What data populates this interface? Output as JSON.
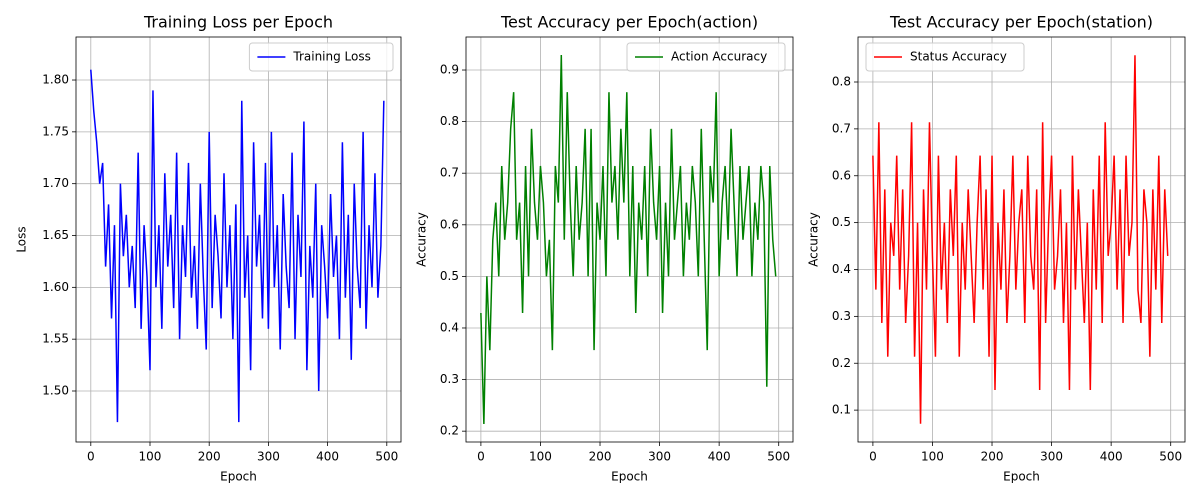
{
  "chart_data": [
    {
      "type": "line",
      "title": "Training Loss per Epoch",
      "x_label": "Epoch",
      "y_label": "Loss",
      "grid": true,
      "legend": "upper right",
      "xlim": [
        -25,
        524
      ],
      "xticks": [
        0,
        100,
        200,
        300,
        400,
        500
      ],
      "ylim": [
        1.4508,
        1.8415
      ],
      "yticks": [
        {
          "value": 1.5,
          "label": "1.50"
        },
        1.55,
        {
          "value": 1.6,
          "label": "1.60"
        },
        1.65,
        {
          "value": 1.7,
          "label": "1.70"
        },
        1.75,
        {
          "value": 1.8,
          "label": "1.80"
        }
      ],
      "x": [
        0,
        5,
        10,
        15,
        20,
        25,
        30,
        35,
        40,
        45,
        50,
        55,
        60,
        65,
        70,
        75,
        80,
        85,
        90,
        95,
        100,
        105,
        110,
        115,
        120,
        125,
        130,
        135,
        140,
        145,
        150,
        155,
        160,
        165,
        170,
        175,
        180,
        185,
        190,
        195,
        200,
        205,
        210,
        215,
        220,
        225,
        230,
        235,
        240,
        245,
        250,
        255,
        260,
        265,
        270,
        275,
        280,
        285,
        290,
        295,
        300,
        305,
        310,
        315,
        320,
        325,
        330,
        335,
        340,
        345,
        350,
        355,
        360,
        365,
        370,
        375,
        380,
        385,
        390,
        395,
        400,
        405,
        410,
        415,
        420,
        425,
        430,
        435,
        440,
        445,
        450,
        455,
        460,
        465,
        470,
        475,
        480,
        485,
        490,
        495
      ],
      "series": [
        {
          "name": "Training Loss",
          "color": "#0000ff",
          "values": [
            1.81,
            1.77,
            1.74,
            1.7,
            1.72,
            1.62,
            1.68,
            1.57,
            1.66,
            1.47,
            1.7,
            1.63,
            1.67,
            1.6,
            1.64,
            1.58,
            1.73,
            1.56,
            1.66,
            1.61,
            1.52,
            1.79,
            1.6,
            1.66,
            1.56,
            1.71,
            1.62,
            1.67,
            1.58,
            1.73,
            1.55,
            1.66,
            1.61,
            1.72,
            1.59,
            1.64,
            1.56,
            1.7,
            1.61,
            1.54,
            1.75,
            1.58,
            1.67,
            1.63,
            1.57,
            1.71,
            1.6,
            1.66,
            1.55,
            1.68,
            1.47,
            1.78,
            1.59,
            1.65,
            1.52,
            1.74,
            1.62,
            1.67,
            1.57,
            1.72,
            1.56,
            1.75,
            1.6,
            1.66,
            1.54,
            1.69,
            1.62,
            1.58,
            1.73,
            1.55,
            1.67,
            1.61,
            1.76,
            1.52,
            1.64,
            1.59,
            1.7,
            1.5,
            1.66,
            1.62,
            1.57,
            1.69,
            1.61,
            1.65,
            1.55,
            1.74,
            1.59,
            1.67,
            1.53,
            1.7,
            1.62,
            1.58,
            1.75,
            1.56,
            1.66,
            1.6,
            1.71,
            1.59,
            1.64,
            1.78
          ]
        }
      ]
    },
    {
      "type": "line",
      "title": "Test Accuracy per Epoch(action)",
      "x_label": "Epoch",
      "y_label": "Accuracy",
      "grid": true,
      "legend": "upper right",
      "xlim": [
        -25,
        524
      ],
      "xticks": [
        0,
        100,
        200,
        300,
        400,
        500
      ],
      "ylim": [
        0.179,
        0.964
      ],
      "yticks": [
        0.2,
        0.3,
        0.4,
        0.5,
        0.6,
        0.7,
        0.8,
        0.9
      ],
      "x": [
        0,
        5,
        10,
        15,
        20,
        25,
        30,
        35,
        40,
        45,
        50,
        55,
        60,
        65,
        70,
        75,
        80,
        85,
        90,
        95,
        100,
        105,
        110,
        115,
        120,
        125,
        130,
        135,
        140,
        145,
        150,
        155,
        160,
        165,
        170,
        175,
        180,
        185,
        190,
        195,
        200,
        205,
        210,
        215,
        220,
        225,
        230,
        235,
        240,
        245,
        250,
        255,
        260,
        265,
        270,
        275,
        280,
        285,
        290,
        295,
        300,
        305,
        310,
        315,
        320,
        325,
        330,
        335,
        340,
        345,
        350,
        355,
        360,
        365,
        370,
        375,
        380,
        385,
        390,
        395,
        400,
        405,
        410,
        415,
        420,
        425,
        430,
        435,
        440,
        445,
        450,
        455,
        460,
        465,
        470,
        475,
        480,
        485,
        490,
        495
      ],
      "series": [
        {
          "name": "Action Accuracy",
          "color": "#008000",
          "values": [
            0.429,
            0.214,
            0.5,
            0.357,
            0.571,
            0.643,
            0.5,
            0.714,
            0.571,
            0.643,
            0.786,
            0.857,
            0.571,
            0.643,
            0.429,
            0.714,
            0.5,
            0.786,
            0.643,
            0.571,
            0.714,
            0.643,
            0.5,
            0.571,
            0.357,
            0.714,
            0.643,
            0.929,
            0.571,
            0.857,
            0.643,
            0.5,
            0.714,
            0.571,
            0.643,
            0.786,
            0.5,
            0.786,
            0.357,
            0.643,
            0.571,
            0.714,
            0.5,
            0.857,
            0.643,
            0.714,
            0.571,
            0.786,
            0.643,
            0.857,
            0.5,
            0.714,
            0.429,
            0.643,
            0.571,
            0.714,
            0.5,
            0.786,
            0.643,
            0.571,
            0.714,
            0.429,
            0.643,
            0.5,
            0.786,
            0.571,
            0.643,
            0.714,
            0.5,
            0.643,
            0.571,
            0.714,
            0.643,
            0.5,
            0.786,
            0.571,
            0.357,
            0.714,
            0.643,
            0.857,
            0.5,
            0.643,
            0.714,
            0.571,
            0.786,
            0.643,
            0.5,
            0.714,
            0.571,
            0.643,
            0.714,
            0.5,
            0.643,
            0.571,
            0.714,
            0.643,
            0.286,
            0.714,
            0.571,
            0.5
          ]
        }
      ]
    },
    {
      "type": "line",
      "title": "Test Accuracy per Epoch(station)",
      "x_label": "Epoch",
      "y_label": "Accuracy",
      "grid": true,
      "legend": "upper left",
      "xlim": [
        -25,
        524
      ],
      "xticks": [
        0,
        100,
        200,
        300,
        400,
        500
      ],
      "ylim": [
        0.032,
        0.896
      ],
      "yticks": [
        0.1,
        0.2,
        0.3,
        0.4,
        0.5,
        0.6,
        0.7,
        0.8
      ],
      "x": [
        0,
        5,
        10,
        15,
        20,
        25,
        30,
        35,
        40,
        45,
        50,
        55,
        60,
        65,
        70,
        75,
        80,
        85,
        90,
        95,
        100,
        105,
        110,
        115,
        120,
        125,
        130,
        135,
        140,
        145,
        150,
        155,
        160,
        165,
        170,
        175,
        180,
        185,
        190,
        195,
        200,
        205,
        210,
        215,
        220,
        225,
        230,
        235,
        240,
        245,
        250,
        255,
        260,
        265,
        270,
        275,
        280,
        285,
        290,
        295,
        300,
        305,
        310,
        315,
        320,
        325,
        330,
        335,
        340,
        345,
        350,
        355,
        360,
        365,
        370,
        375,
        380,
        385,
        390,
        395,
        400,
        405,
        410,
        415,
        420,
        425,
        430,
        435,
        440,
        445,
        450,
        455,
        460,
        465,
        470,
        475,
        480,
        485,
        490,
        495
      ],
      "series": [
        {
          "name": "Status Accuracy",
          "color": "#ff0000",
          "values": [
            0.643,
            0.357,
            0.714,
            0.286,
            0.571,
            0.214,
            0.5,
            0.429,
            0.643,
            0.357,
            0.571,
            0.286,
            0.429,
            0.714,
            0.214,
            0.5,
            0.071,
            0.571,
            0.357,
            0.714,
            0.429,
            0.214,
            0.643,
            0.357,
            0.5,
            0.286,
            0.571,
            0.429,
            0.643,
            0.214,
            0.5,
            0.357,
            0.571,
            0.429,
            0.286,
            0.5,
            0.643,
            0.357,
            0.571,
            0.214,
            0.643,
            0.143,
            0.5,
            0.357,
            0.571,
            0.286,
            0.429,
            0.643,
            0.357,
            0.5,
            0.571,
            0.286,
            0.643,
            0.429,
            0.357,
            0.571,
            0.143,
            0.714,
            0.286,
            0.5,
            0.643,
            0.357,
            0.429,
            0.571,
            0.286,
            0.5,
            0.143,
            0.643,
            0.357,
            0.571,
            0.429,
            0.286,
            0.5,
            0.143,
            0.571,
            0.357,
            0.643,
            0.286,
            0.714,
            0.429,
            0.5,
            0.643,
            0.357,
            0.571,
            0.286,
            0.643,
            0.429,
            0.5,
            0.857,
            0.357,
            0.286,
            0.571,
            0.5,
            0.214,
            0.571,
            0.357,
            0.643,
            0.286,
            0.571,
            0.429
          ]
        }
      ]
    }
  ]
}
